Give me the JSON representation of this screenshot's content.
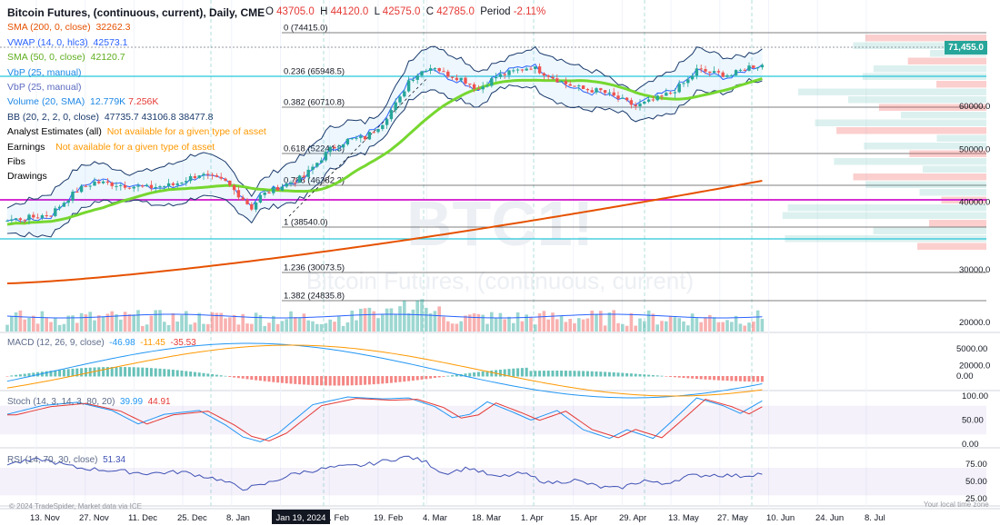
{
  "header": {
    "title": "Bitcoin Futures, (continuous, current), Daily, CME",
    "o_label": "O",
    "o": "43705.0",
    "h_label": "H",
    "h": "44120.0",
    "l_label": "L",
    "l": "42575.0",
    "c_label": "C",
    "c": "42785.0",
    "period_label": "Period",
    "period": "-2.11%"
  },
  "legend": [
    {
      "label": "SMA (200, 0, close)",
      "value": "32262.3",
      "color": "#e65100"
    },
    {
      "label": "VWAP (14, 0, hlc3)",
      "value": "42573.1",
      "color": "#2962ff"
    },
    {
      "label": "SMA (50, 0, close)",
      "value": "42120.7",
      "color": "#76d72f"
    },
    {
      "label": "VbP (25, manual)",
      "value": "",
      "color": "#1e88e5"
    },
    {
      "label": "VbP (25, manual)",
      "value": "",
      "color": "#5c6bc0"
    },
    {
      "label": "Volume (20, SMA)",
      "value": "12.779K",
      "value2": "7.256K",
      "color": "#1e88e5"
    },
    {
      "label": "BB (20, 2, 2, 0, close)",
      "value": "47735.7  43106.8  38477.8",
      "color": "#131722"
    },
    {
      "label": "Analyst Estimates (all)",
      "value": "Not available for a given type of asset",
      "color": "#131722"
    },
    {
      "label": "Earnings",
      "value": "Not available for a given type of asset",
      "color": "#131722"
    },
    {
      "label": "Fibs",
      "value": "",
      "color": "#131722"
    },
    {
      "label": "Drawings",
      "value": "",
      "color": "#131722"
    }
  ],
  "watermark": {
    "symbol": "BTC1!",
    "name": "Bitcoin Futures, (continuous, current)"
  },
  "price_tag": "71,455.0",
  "fib_labels": [
    "0 (74415.0)",
    "0.236 (65948.5)",
    "0.382 (60710.8)",
    "0.618 (52244.3)",
    "0.786 (46282.3)",
    "1 (38540.0)",
    "1.236 (30073.5)",
    "1.382 (24835.8)"
  ],
  "panes": {
    "macd": {
      "label": "MACD (12, 26, 9, close)",
      "v1": "-46.98",
      "v2": "-11.45",
      "v3": "-35.53"
    },
    "stoch": {
      "label": "Stoch (14, 3, 14, 3, 80, 20)",
      "v1": "39.99",
      "v2": "44.91"
    },
    "rsi": {
      "label": "RSI (14, 70, 30, close)",
      "v1": "51.34"
    }
  },
  "footer": {
    "left": "© 2024 TradeSpider, Market data via ICE",
    "right": "Your local time zone"
  },
  "colors": {
    "up": "#26a69a",
    "down": "#ef5350",
    "bb": "#1a3a6c",
    "sma200": "#e65100",
    "sma50": "#76d72f",
    "vwap": "#2962ff",
    "magenta": "#d62fd0",
    "cyan": "#26c6da",
    "macd": "#2196f3",
    "signal": "#ff9800",
    "stoch_k": "#2196f3",
    "stoch_d": "#e53935",
    "rsi": "#3f51b5"
  },
  "chart_data": {
    "type": "candlestick",
    "title": "Bitcoin Futures, (continuous, current), Daily, CME",
    "x_ticks": [
      "13. Nov",
      "27. Nov",
      "11. Dec",
      "25. Dec",
      "8. Jan",
      "Jan 19, 2024",
      "5. Feb",
      "19. Feb",
      "4. Mar",
      "18. Mar",
      "1. Apr",
      "15. Apr",
      "29. Apr",
      "13. May",
      "27. May",
      "10. Jun",
      "24. Jun",
      "8. Jul"
    ],
    "price_axis": {
      "ticks": [
        20000,
        30000,
        40000,
        50000,
        60000
      ],
      "labels": [
        "20000.0",
        "30000.0",
        "40000.0",
        "50000.0",
        "60000.0"
      ],
      "log": true
    },
    "price_path": [
      [
        0,
        37000
      ],
      [
        6,
        37500
      ],
      [
        10,
        38000
      ],
      [
        16,
        42000
      ],
      [
        20,
        43500
      ],
      [
        26,
        43000
      ],
      [
        32,
        42500
      ],
      [
        38,
        43000
      ],
      [
        44,
        45000
      ],
      [
        50,
        43500
      ],
      [
        52,
        42000
      ],
      [
        56,
        39000
      ],
      [
        58,
        41000
      ],
      [
        62,
        42500
      ],
      [
        68,
        44500
      ],
      [
        74,
        50000
      ],
      [
        78,
        52000
      ],
      [
        82,
        52500
      ],
      [
        86,
        56000
      ],
      [
        90,
        62000
      ],
      [
        92,
        67000
      ],
      [
        96,
        70500
      ],
      [
        98,
        71000
      ],
      [
        100,
        69000
      ],
      [
        104,
        67500
      ],
      [
        108,
        64500
      ],
      [
        112,
        68000
      ],
      [
        116,
        69500
      ],
      [
        120,
        71000
      ],
      [
        124,
        68500
      ],
      [
        128,
        66000
      ],
      [
        132,
        64500
      ],
      [
        136,
        64000
      ],
      [
        140,
        62000
      ],
      [
        144,
        60000
      ],
      [
        148,
        61500
      ],
      [
        152,
        63500
      ],
      [
        156,
        67000
      ],
      [
        158,
        70000
      ],
      [
        162,
        69000
      ],
      [
        166,
        68500
      ],
      [
        170,
        71000
      ],
      [
        173,
        71455
      ]
    ],
    "volume_axis": {
      "ticks": [
        20000
      ],
      "labels": [
        "20000.0"
      ]
    },
    "macd_axis": {
      "ticks": [
        0,
        5000
      ],
      "labels": [
        "0.00",
        "5000.00"
      ]
    },
    "stoch_axis": {
      "ticks": [
        0,
        50,
        100
      ],
      "labels": [
        "0.00",
        "50.00",
        "100.00"
      ]
    },
    "rsi_axis": {
      "ticks": [
        25,
        50,
        75
      ],
      "labels": [
        "25.00",
        "50.00",
        "75.00"
      ]
    },
    "stoch_path": [
      [
        0,
        62
      ],
      [
        8,
        80
      ],
      [
        16,
        87
      ],
      [
        24,
        70
      ],
      [
        30,
        42
      ],
      [
        36,
        62
      ],
      [
        44,
        70
      ],
      [
        50,
        40
      ],
      [
        54,
        15
      ],
      [
        58,
        5
      ],
      [
        62,
        22
      ],
      [
        70,
        82
      ],
      [
        78,
        98
      ],
      [
        86,
        94
      ],
      [
        92,
        96
      ],
      [
        98,
        78
      ],
      [
        102,
        55
      ],
      [
        106,
        62
      ],
      [
        110,
        88
      ],
      [
        116,
        66
      ],
      [
        120,
        50
      ],
      [
        126,
        70
      ],
      [
        132,
        30
      ],
      [
        138,
        12
      ],
      [
        142,
        30
      ],
      [
        148,
        12
      ],
      [
        152,
        45
      ],
      [
        158,
        96
      ],
      [
        164,
        80
      ],
      [
        168,
        64
      ],
      [
        173,
        90
      ]
    ],
    "rsi_path": [
      [
        0,
        76
      ],
      [
        8,
        82
      ],
      [
        16,
        70
      ],
      [
        24,
        66
      ],
      [
        32,
        62
      ],
      [
        40,
        64
      ],
      [
        48,
        54
      ],
      [
        54,
        40
      ],
      [
        58,
        44
      ],
      [
        66,
        62
      ],
      [
        74,
        70
      ],
      [
        82,
        74
      ],
      [
        88,
        82
      ],
      [
        92,
        86
      ],
      [
        96,
        78
      ],
      [
        100,
        62
      ],
      [
        106,
        70
      ],
      [
        112,
        56
      ],
      [
        118,
        62
      ],
      [
        124,
        48
      ],
      [
        130,
        52
      ],
      [
        136,
        42
      ],
      [
        140,
        40
      ],
      [
        146,
        52
      ],
      [
        150,
        46
      ],
      [
        156,
        58
      ],
      [
        162,
        60
      ],
      [
        168,
        58
      ],
      [
        173,
        62
      ]
    ]
  }
}
